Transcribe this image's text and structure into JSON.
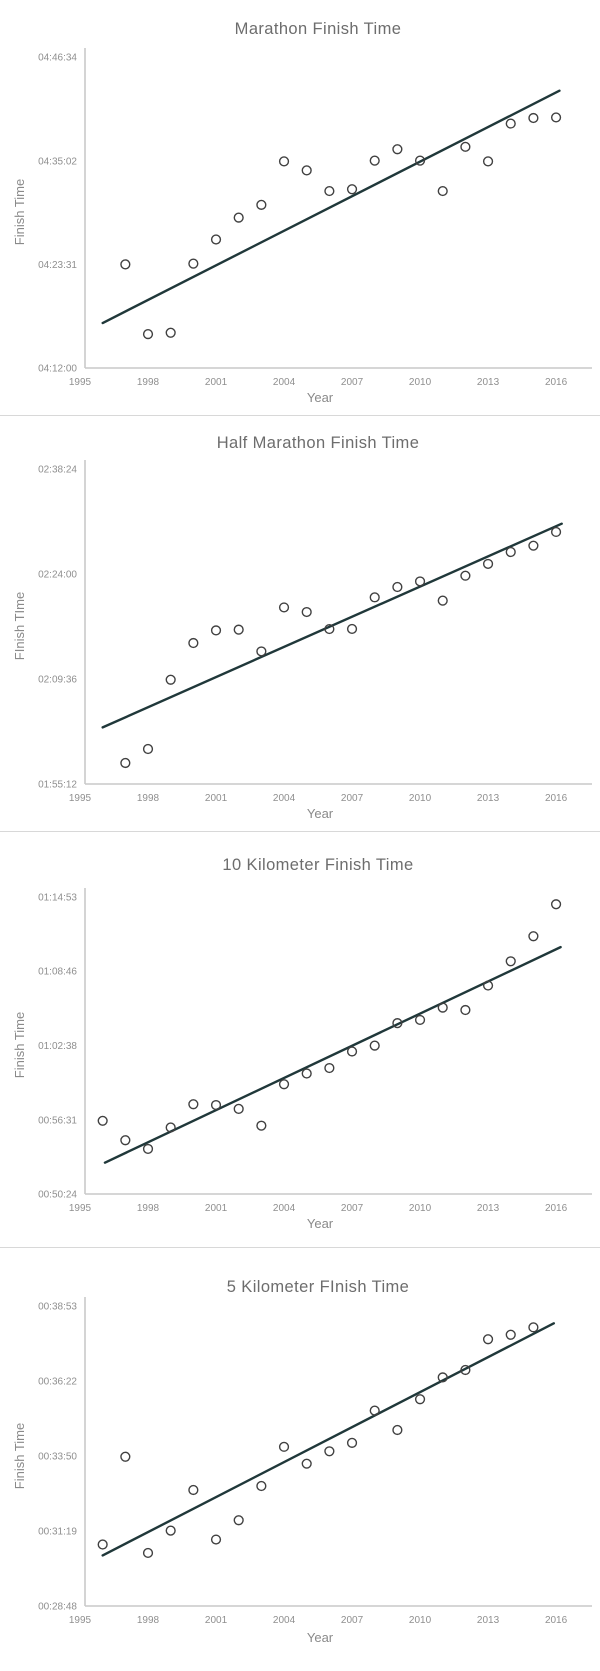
{
  "colors": {
    "background": "#ffffff",
    "title_text": "#6d6d6d",
    "axis_label_text": "#8a8a8a",
    "tick_text": "#8f8f8f",
    "axis_spine": "#c9c9c9",
    "trend_line": "#20383a",
    "marker_stroke": "#404040",
    "divider": "#d8d8d8"
  },
  "chart_data": [
    {
      "type": "scatter",
      "title": "Marathon Finish Time",
      "xlabel": "Year",
      "ylabel": "Finish Time",
      "grid": false,
      "legend": "none",
      "xlim": [
        1994.8,
        2017.6
      ],
      "x_ticks": [
        1995,
        1998,
        2001,
        2004,
        2007,
        2010,
        2013,
        2016
      ],
      "y_tick_labels": [
        "04:12:00",
        "04:23:31",
        "04:35:02",
        "04:46:34"
      ],
      "points": [
        [
          1997,
          "04:23:31"
        ],
        [
          1998,
          "04:15:46"
        ],
        [
          1999,
          "04:15:55"
        ],
        [
          2000,
          "04:23:36"
        ],
        [
          2001,
          "04:26:17"
        ],
        [
          2002,
          "04:28:43"
        ],
        [
          2003,
          "04:30:08"
        ],
        [
          2004,
          "04:34:58"
        ],
        [
          2005,
          "04:33:58"
        ],
        [
          2006,
          "04:31:40"
        ],
        [
          2007,
          "04:31:52"
        ],
        [
          2008,
          "04:35:03"
        ],
        [
          2009,
          "04:36:19"
        ],
        [
          2010,
          "04:35:03"
        ],
        [
          2011,
          "04:31:40"
        ],
        [
          2012,
          "04:36:35"
        ],
        [
          2013,
          "04:34:58"
        ],
        [
          2014,
          "04:39:10"
        ],
        [
          2015,
          "04:39:47"
        ],
        [
          2016,
          "04:39:51"
        ]
      ],
      "trendline": {
        "x": [
          1996.0,
          2016.15
        ],
        "times": [
          "04:17:00",
          "04:42:49"
        ]
      }
    },
    {
      "type": "scatter",
      "title": "Half Marathon Finish Time",
      "xlabel": "Year",
      "ylabel": "FInish TIme",
      "grid": false,
      "legend": "none",
      "xlim": [
        1994.8,
        2017.6
      ],
      "x_ticks": [
        1995,
        1998,
        2001,
        2004,
        2007,
        2010,
        2013,
        2016
      ],
      "y_tick_labels": [
        "01:55:12",
        "02:09:36",
        "02:24:00",
        "02:38:24"
      ],
      "points": [
        [
          1997,
          "01:58:05"
        ],
        [
          1998,
          "02:00:00"
        ],
        [
          1999,
          "02:09:30"
        ],
        [
          2000,
          "02:14:32"
        ],
        [
          2001,
          "02:16:16"
        ],
        [
          2002,
          "02:16:22"
        ],
        [
          2003,
          "02:13:23"
        ],
        [
          2004,
          "02:19:25"
        ],
        [
          2005,
          "02:18:47"
        ],
        [
          2006,
          "02:16:27"
        ],
        [
          2007,
          "02:16:28"
        ],
        [
          2008,
          "02:20:48"
        ],
        [
          2009,
          "02:22:13"
        ],
        [
          2010,
          "02:22:59"
        ],
        [
          2011,
          "02:20:21"
        ],
        [
          2012,
          "02:23:46"
        ],
        [
          2013,
          "02:25:23"
        ],
        [
          2014,
          "02:27:01"
        ],
        [
          2015,
          "02:27:53"
        ],
        [
          2016,
          "02:29:46"
        ]
      ],
      "trendline": {
        "x": [
          1996.0,
          2016.25
        ],
        "times": [
          "02:02:58",
          "02:30:54"
        ]
      }
    },
    {
      "type": "scatter",
      "title": "10 Kilometer Finish Time",
      "xlabel": "Year",
      "ylabel": "Finish Time",
      "grid": false,
      "legend": "none",
      "xlim": [
        1994.8,
        2017.6
      ],
      "x_ticks": [
        1995,
        1998,
        2001,
        2004,
        2007,
        2010,
        2013,
        2016
      ],
      "y_tick_labels": [
        "00:50:24",
        "00:56:31",
        "01:02:38",
        "01:08:46",
        "01:14:53"
      ],
      "points": [
        [
          1996,
          "00:56:26"
        ],
        [
          1997,
          "00:54:50"
        ],
        [
          1998,
          "00:54:07"
        ],
        [
          1999,
          "00:55:53"
        ],
        [
          2000,
          "00:57:48"
        ],
        [
          2001,
          "00:57:44"
        ],
        [
          2002,
          "00:57:25"
        ],
        [
          2003,
          "00:56:02"
        ],
        [
          2004,
          "00:59:27"
        ],
        [
          2005,
          "01:00:20"
        ],
        [
          2006,
          "01:00:47"
        ],
        [
          2007,
          "01:02:09"
        ],
        [
          2008,
          "01:02:38"
        ],
        [
          2009,
          "01:04:29"
        ],
        [
          2010,
          "01:04:45"
        ],
        [
          2011,
          "01:05:46"
        ],
        [
          2012,
          "01:05:34"
        ],
        [
          2013,
          "01:07:35"
        ],
        [
          2014,
          "01:09:35"
        ],
        [
          2015,
          "01:11:39"
        ],
        [
          2016,
          "01:14:17"
        ]
      ],
      "trendline": {
        "x": [
          1996.1,
          2016.2
        ],
        "times": [
          "00:52:59",
          "01:10:45"
        ]
      }
    },
    {
      "type": "scatter",
      "title": "5 Kilometer FInish Time",
      "xlabel": "Year",
      "ylabel": "Finish Time",
      "grid": false,
      "legend": "none",
      "xlim": [
        1994.8,
        2017.6
      ],
      "x_ticks": [
        1995,
        1998,
        2001,
        2004,
        2007,
        2010,
        2013,
        2016
      ],
      "y_tick_labels": [
        "00:28:48",
        "00:31:19",
        "00:33:50",
        "00:36:22",
        "00:38:53"
      ],
      "points": [
        [
          1996,
          "00:30:52"
        ],
        [
          1997,
          "00:33:49"
        ],
        [
          1998,
          "00:30:35"
        ],
        [
          1999,
          "00:31:20"
        ],
        [
          2000,
          "00:32:42"
        ],
        [
          2001,
          "00:31:02"
        ],
        [
          2002,
          "00:31:41"
        ],
        [
          2003,
          "00:32:50"
        ],
        [
          2004,
          "00:34:09"
        ],
        [
          2005,
          "00:33:35"
        ],
        [
          2006,
          "00:34:00"
        ],
        [
          2007,
          "00:34:17"
        ],
        [
          2008,
          "00:35:22"
        ],
        [
          2009,
          "00:34:43"
        ],
        [
          2010,
          "00:35:45"
        ],
        [
          2011,
          "00:36:29"
        ],
        [
          2012,
          "00:36:44"
        ],
        [
          2013,
          "00:37:46"
        ],
        [
          2014,
          "00:37:55"
        ],
        [
          2015,
          "00:38:10"
        ]
      ],
      "trendline": {
        "x": [
          1996.0,
          2015.9
        ],
        "times": [
          "00:30:30",
          "00:38:18"
        ]
      }
    }
  ]
}
